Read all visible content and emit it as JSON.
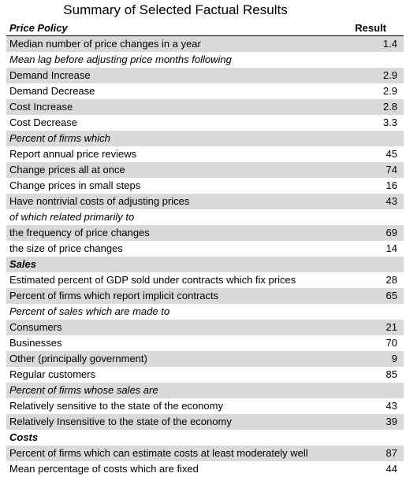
{
  "title": "Summary of Selected Factual Results",
  "table": {
    "header": [
      "Price Policy",
      "Result"
    ],
    "rows": [
      {
        "label": "Median number of price changes in a year",
        "value": 1.4
      },
      {
        "label": "Mean lag before adjusting price months following"
      },
      {
        "label": "Demand Increase",
        "value": 2.9
      },
      {
        "label": "Demand Decrease",
        "value": 2.9
      },
      {
        "label": "Cost Increase",
        "value": 2.8
      },
      {
        "label": "Cost Decrease",
        "value": 3.3
      },
      {
        "label": "Percent of firms which"
      },
      {
        "label": "Report annual price reviews",
        "value": 45
      },
      {
        "label": "Change prices all at once",
        "value": 74
      },
      {
        "label": "Change prices in small steps",
        "value": 16
      },
      {
        "label": "Have nontrivial costs of adjusting prices",
        "value": 43
      },
      {
        "label": "of which related primarily to"
      },
      {
        "label": "the frequency of price changes",
        "value": 69
      },
      {
        "label": "the size of price changes",
        "value": 14
      },
      {
        "label": "Sales"
      },
      {
        "label": "Estimated percent of GDP sold under contracts which fix prices",
        "value": 28
      },
      {
        "label": "Percent of firms which report implicit contracts",
        "value": 65
      },
      {
        "label": "Percent of sales which are made to"
      },
      {
        "label": "Consumers",
        "value": 21
      },
      {
        "label": "Businesses",
        "value": 70
      },
      {
        "label": "Other (principally government)",
        "value": 9
      },
      {
        "label": "Regular customers",
        "value": 85
      },
      {
        "label": "Percent of firms whose sales are"
      },
      {
        "label": "Relatively sensitive to the state of the economy",
        "value": 43
      },
      {
        "label": "Relatively Insensitive to the state of the economy",
        "value": 39
      },
      {
        "label": "Costs"
      },
      {
        "label": "Percent of firms which can estimate costs at least moderately well",
        "value": 87
      },
      {
        "label": "Mean percentage of costs which are fixed",
        "value": 44
      }
    ]
  }
}
